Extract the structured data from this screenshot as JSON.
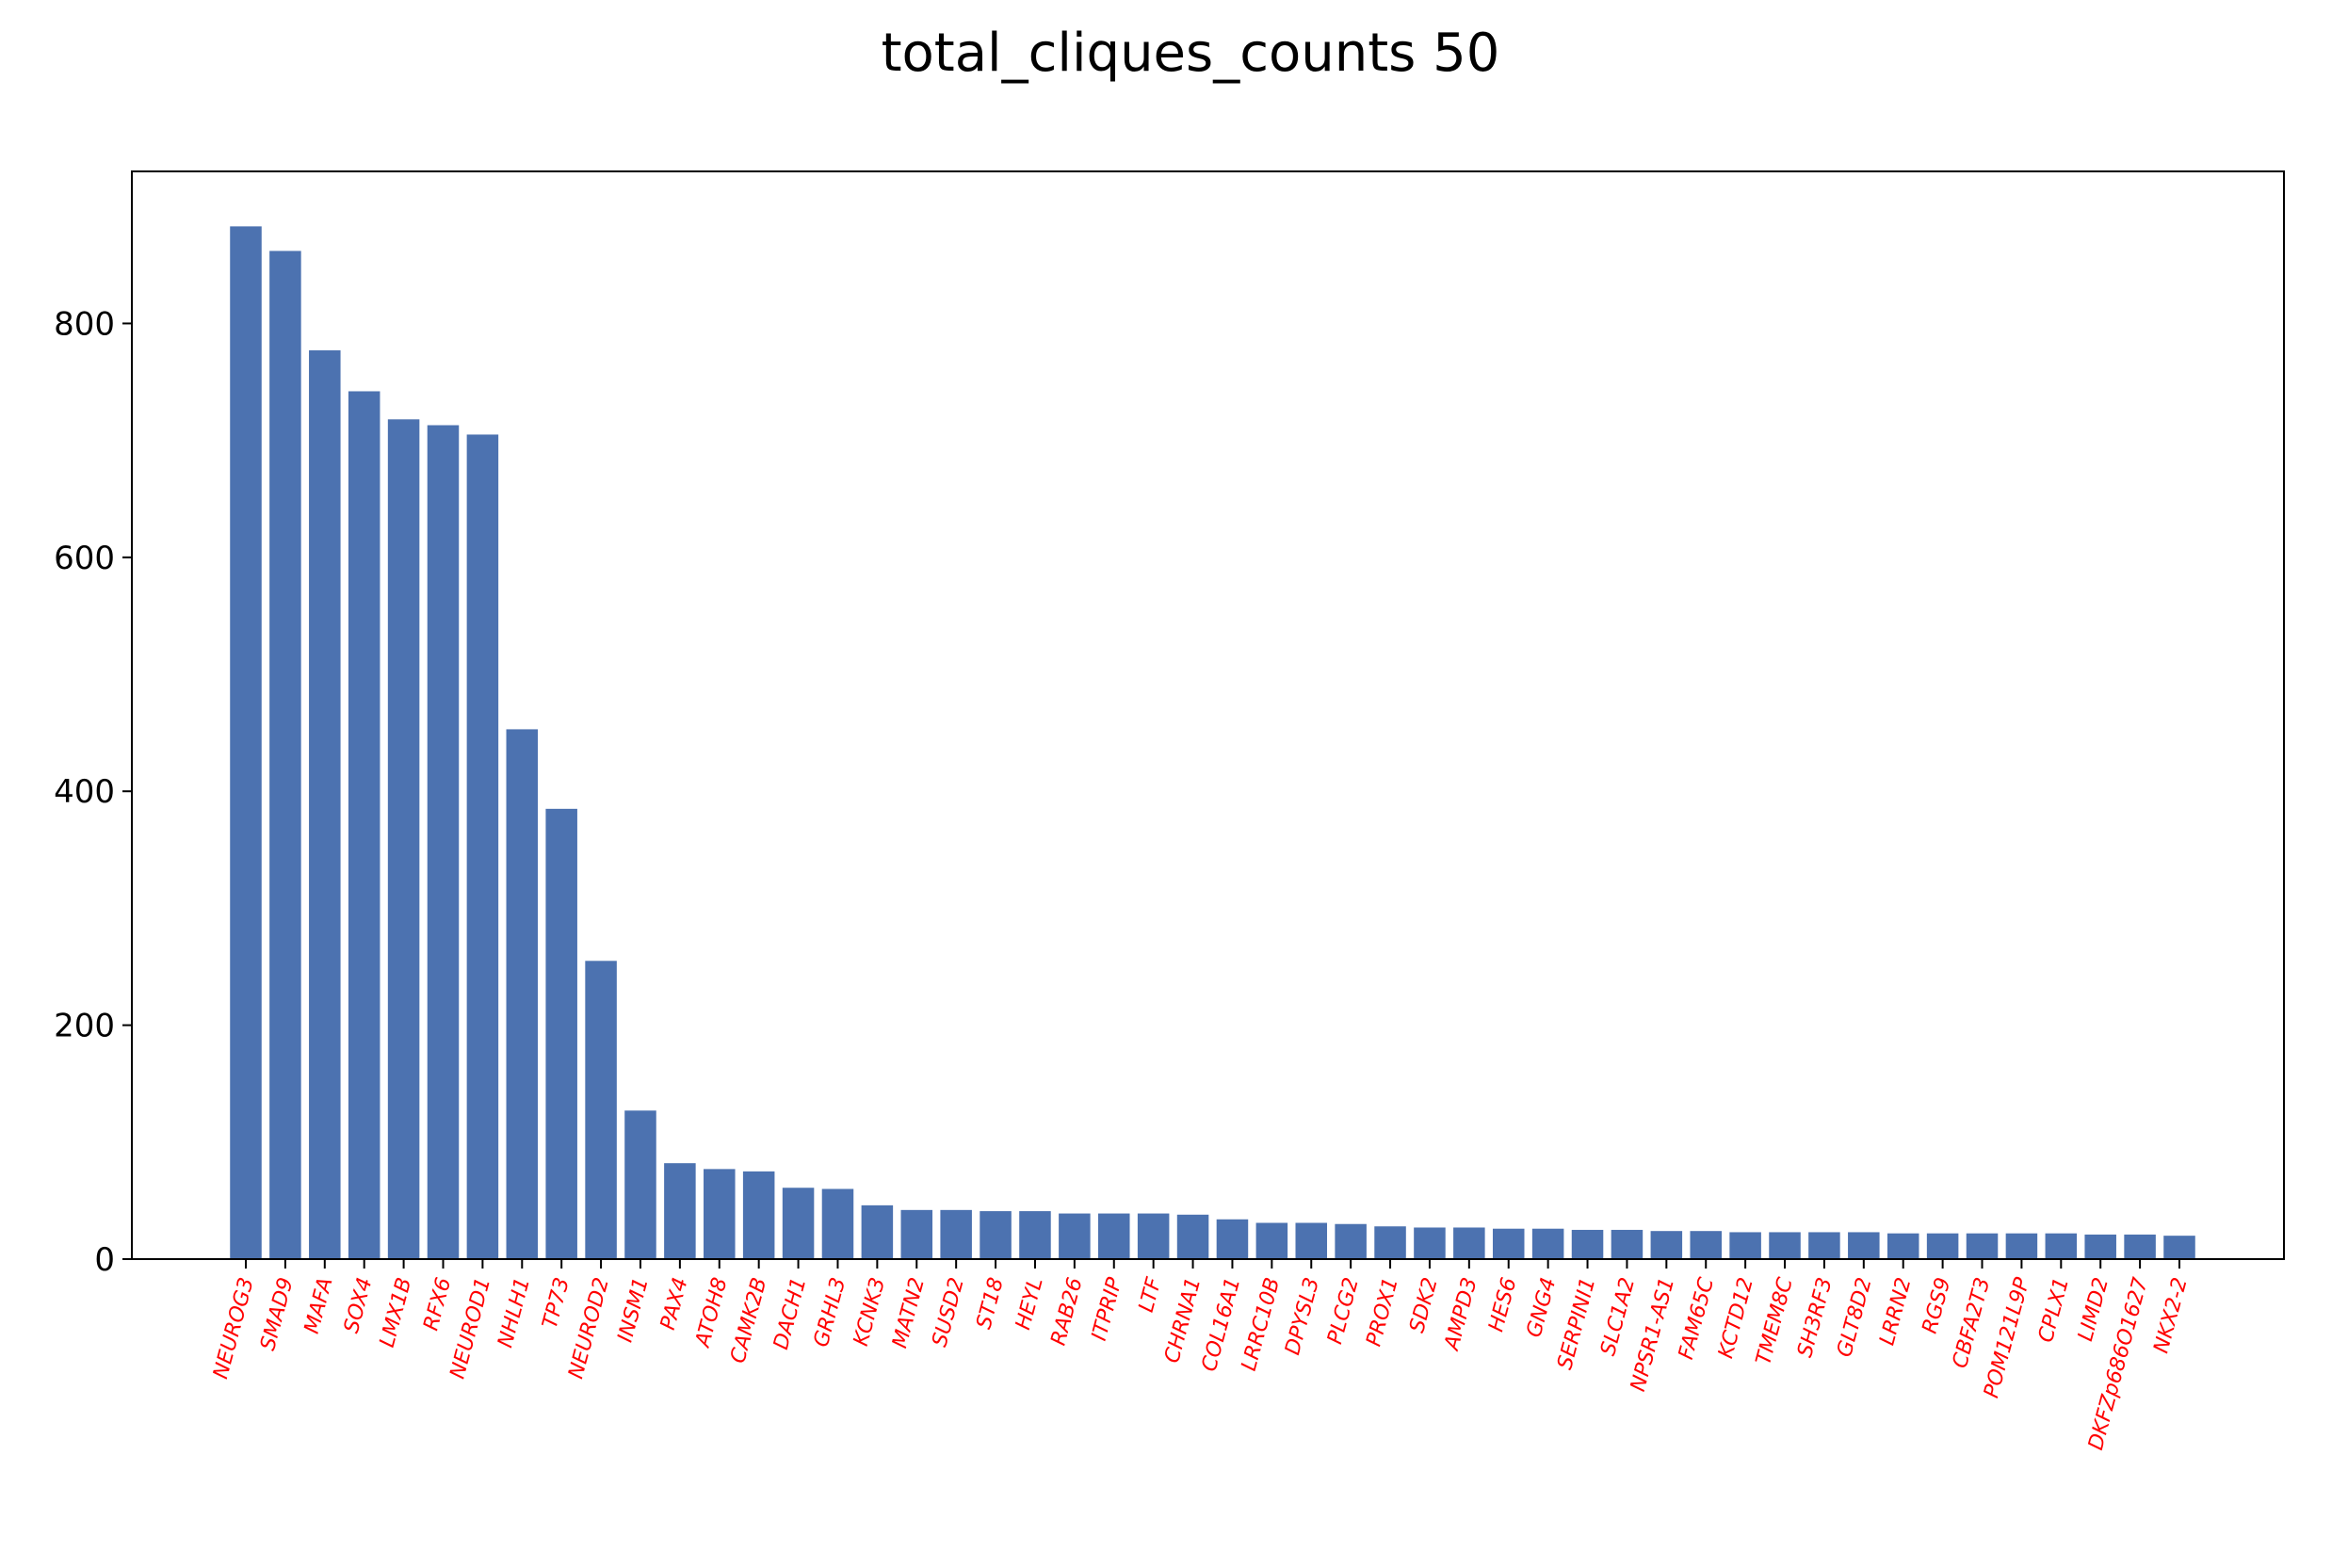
{
  "chart_data": {
    "type": "bar",
    "title": "total_cliques_counts 50",
    "xlabel": "",
    "ylabel": "",
    "ylim": [
      0,
      930
    ],
    "yticks": [
      0,
      200,
      400,
      600,
      800
    ],
    "bar_color": "#4c72b0",
    "tick_label_color": "#ff0000",
    "grid": false,
    "legend": "none",
    "categories": [
      "NEUROG3",
      "SMAD9",
      "MAFA",
      "SOX4",
      "LMX1B",
      "RFX6",
      "NEUROD1",
      "NHLH1",
      "TP73",
      "NEUROD2",
      "INSM1",
      "PAX4",
      "ATOH8",
      "CAMK2B",
      "DACH1",
      "GRHL3",
      "KCNK3",
      "MATN2",
      "SUSD2",
      "ST18",
      "HEYL",
      "RAB26",
      "ITPRIP",
      "LTF",
      "CHRNA1",
      "COL16A1",
      "LRRC10B",
      "DPYSL3",
      "PLCG2",
      "PROX1",
      "SDK2",
      "AMPD3",
      "HES6",
      "GNG4",
      "SERPINI1",
      "SLC1A2",
      "NPSR1-AS1",
      "FAM65C",
      "KCTD12",
      "TMEM8C",
      "SH3RF3",
      "GLT8D2",
      "LRRN2",
      "RGS9",
      "CBFA2T3",
      "POM121L9P",
      "CPLX1",
      "LIMD2",
      "DKFZp686O1627",
      "NKX2-2"
    ],
    "values": [
      883,
      862,
      777,
      742,
      718,
      713,
      705,
      453,
      385,
      255,
      127,
      82,
      77,
      75,
      61,
      60,
      46,
      42,
      42,
      41,
      41,
      39,
      39,
      39,
      38,
      34,
      31,
      31,
      30,
      28,
      27,
      27,
      26,
      26,
      25,
      25,
      24,
      24,
      23,
      23,
      23,
      23,
      22,
      22,
      22,
      22,
      22,
      21,
      21,
      20
    ]
  }
}
